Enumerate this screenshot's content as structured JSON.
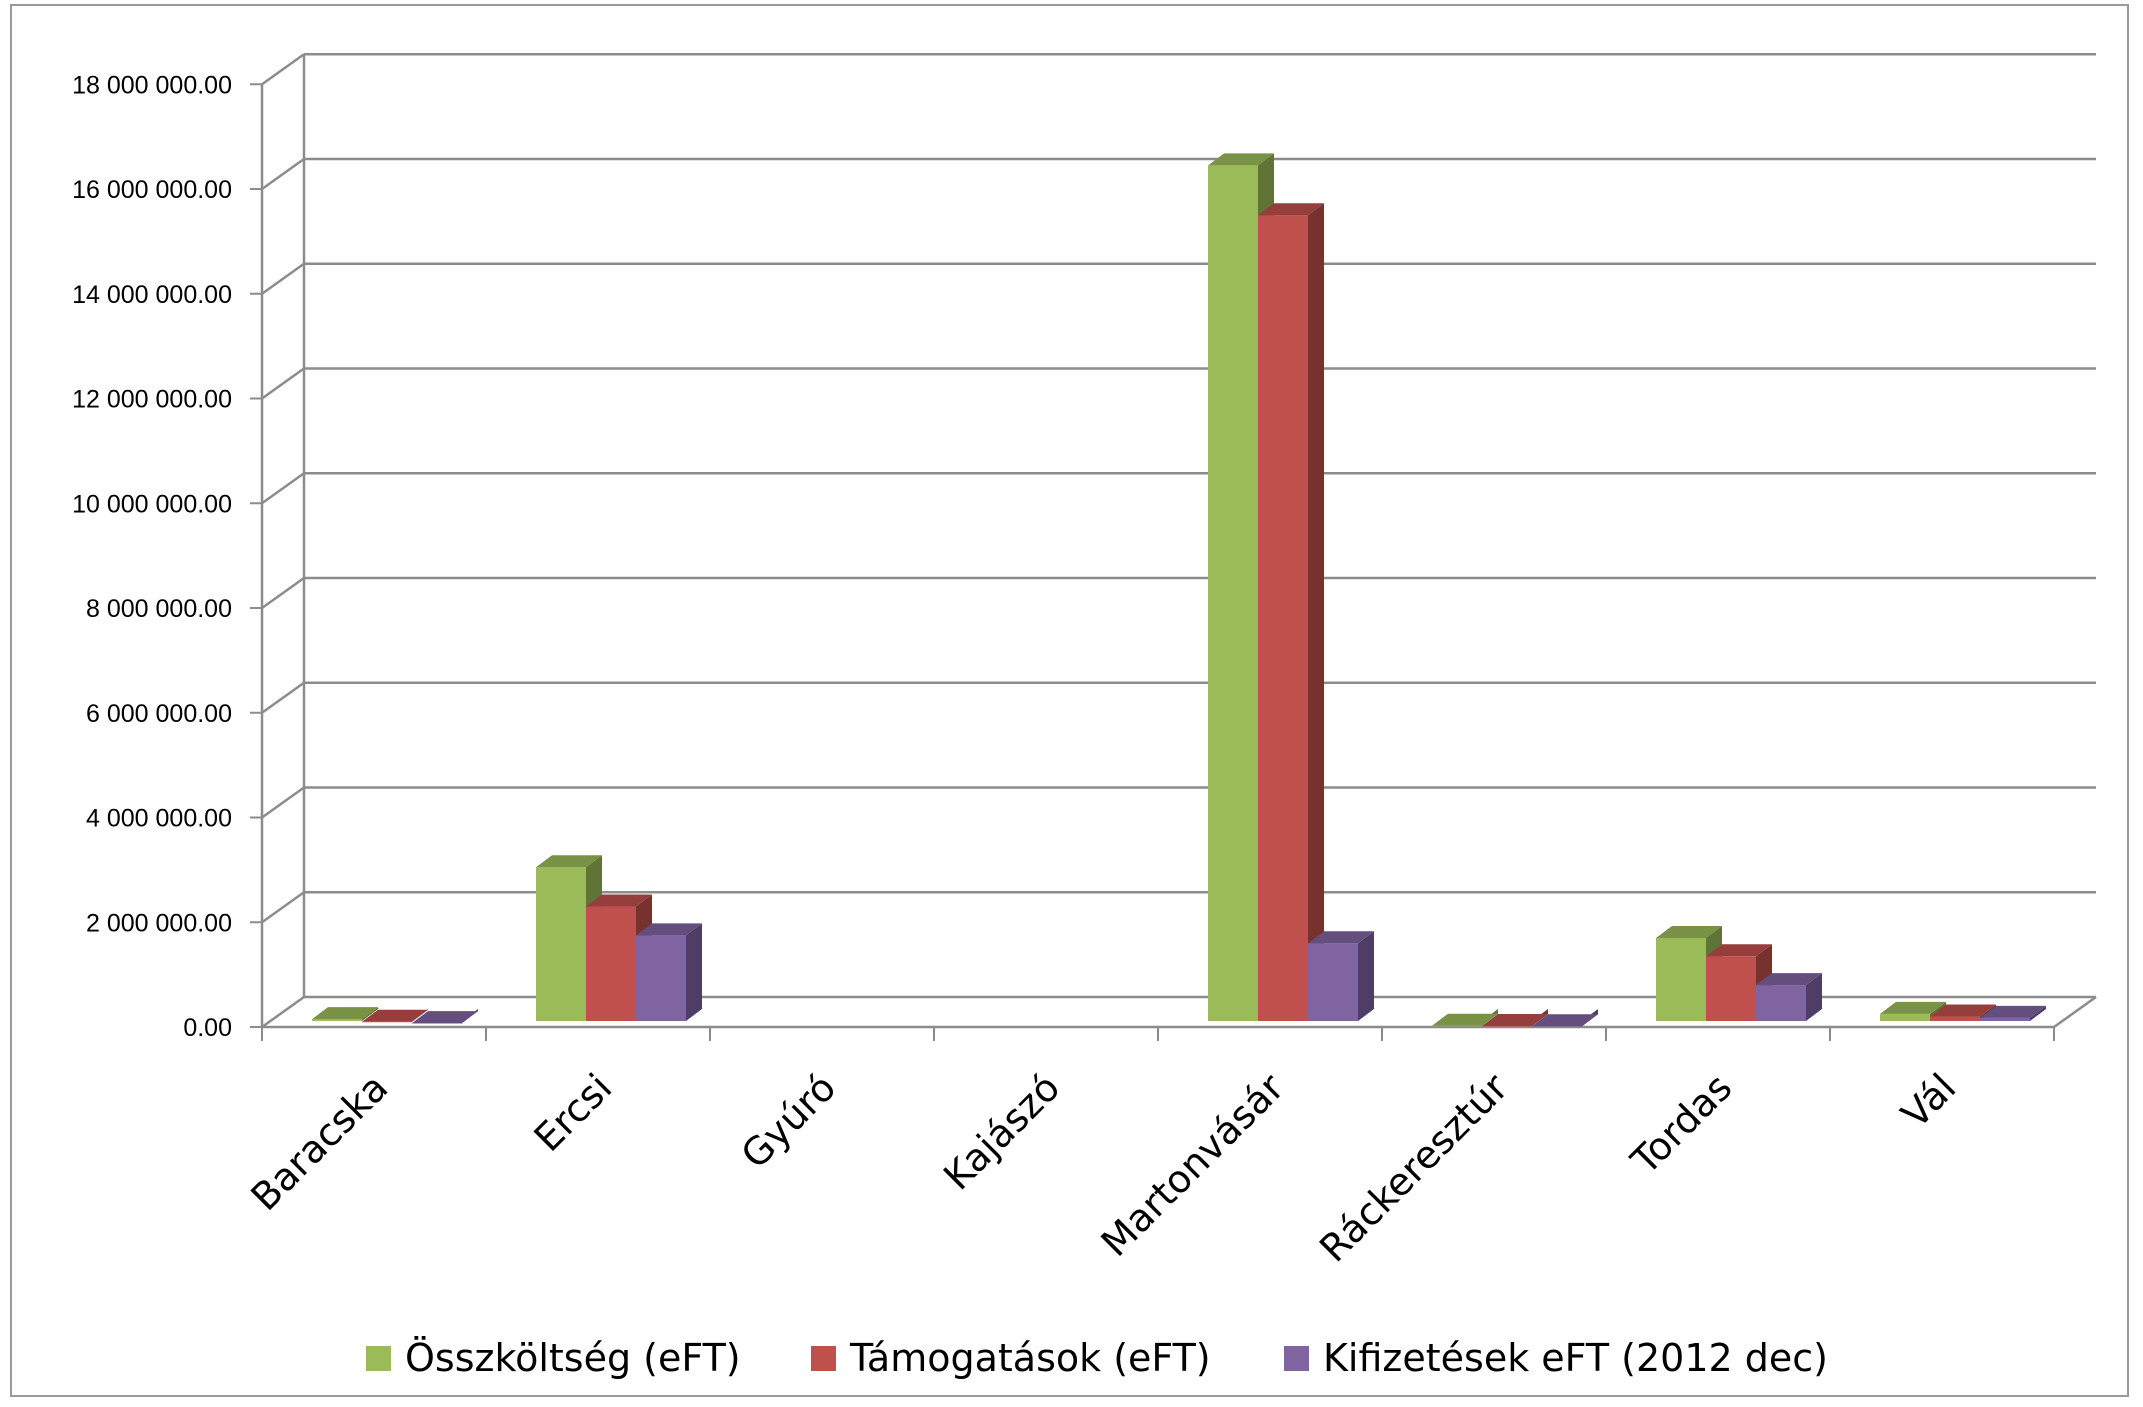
{
  "chart_data": {
    "type": "bar",
    "style": "3d-clustered-column",
    "categories": [
      "Baracska",
      "Ercsi",
      "Gyúró",
      "Kajászó",
      "Martonvásár",
      "Ráckeresztúr",
      "Tordas",
      "Vál"
    ],
    "series": [
      {
        "name": "Összköltség (eFT)",
        "color": "#9BBB59",
        "values": [
          150000,
          3050000,
          0,
          0,
          16450000,
          25000,
          1700000,
          250000
        ]
      },
      {
        "name": "Támogatások (eFT)",
        "color": "#C0504D",
        "values": [
          100000,
          2300000,
          0,
          0,
          15500000,
          18000,
          1350000,
          200000
        ]
      },
      {
        "name": "Kifizetések eFT (2012 dec)",
        "color": "#8064A2",
        "values": [
          75000,
          1750000,
          0,
          0,
          1600000,
          15000,
          800000,
          175000
        ]
      }
    ],
    "y_ticks": [
      "0.00",
      "2 000 000.00",
      "4 000 000.00",
      "6 000 000.00",
      "8 000 000.00",
      "10 000 000.00",
      "12 000 000.00",
      "14 000 000.00",
      "16 000 000.00",
      "18 000 000.00"
    ],
    "ylim": [
      0,
      18000000
    ],
    "grid": true,
    "legend_position": "bottom"
  }
}
